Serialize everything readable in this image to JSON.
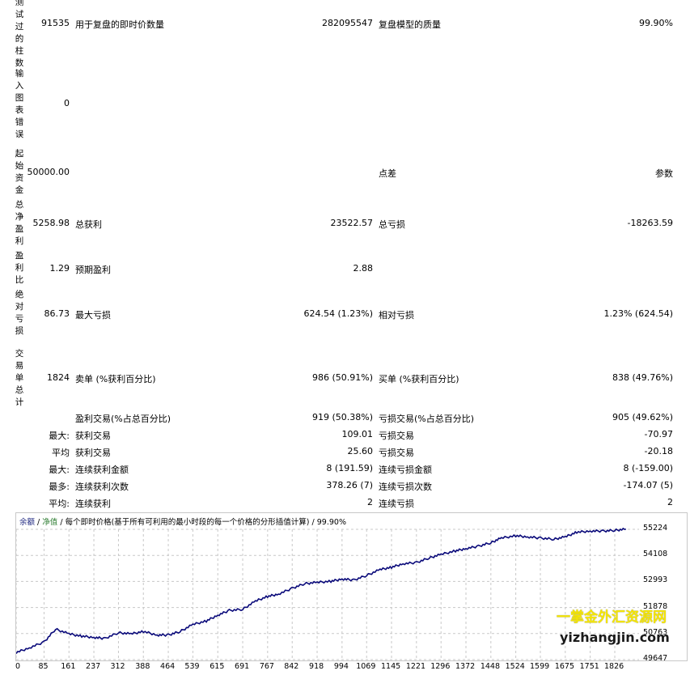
{
  "left_labels": {
    "bars_tested": "测试过的柱数",
    "chart_errors": "输入图表错误",
    "initial_deposit": "起始资金",
    "net_profit": "总净盈利",
    "profit_factor": "盈利比",
    "abs_drawdown": "绝对亏损",
    "total_trades": "交易单总计"
  },
  "rows": {
    "bars": {
      "value": "91535",
      "label2": "用于复盘的即时价数量",
      "value2": "282095547",
      "label3": "复盘模型的质量",
      "value3": "99.90%"
    },
    "errors": {
      "value": "0"
    },
    "deposit": {
      "value": "50000.00",
      "label2": "点差",
      "value3": "参数"
    },
    "net": {
      "value": "5258.98",
      "label2": "总获利",
      "value2": "23522.57",
      "label3": "总亏损",
      "value3": "-18263.59"
    },
    "factor": {
      "value": "1.29",
      "label2": "预期盈利",
      "value2": "2.88"
    },
    "drawdown": {
      "value": "86.73",
      "label2": "最大亏损",
      "value2": "624.54 (1.23%)",
      "label3": "相对亏损",
      "value3": "1.23% (624.54)"
    },
    "trades": {
      "value": "1824",
      "label2": "卖单 (%获利百分比)",
      "value2": "986 (50.91%)",
      "label3": "买单 (%获利百分比)",
      "value3": "838 (49.76%)"
    },
    "profit_trades": {
      "label2": "盈利交易(%占总百分比)",
      "value2": "919 (50.38%)",
      "label3": "亏损交易(%占总百分比)",
      "value3": "905 (49.62%)"
    },
    "largest": {
      "label1": "最大:",
      "label2": "获利交易",
      "value2": "109.01",
      "label3": "亏损交易",
      "value3": "-70.97"
    },
    "average": {
      "label1": "平均",
      "label2": "获利交易",
      "value2": "25.60",
      "label3": "亏损交易",
      "value3": "-20.18"
    },
    "max_consec": {
      "label1": "最大:",
      "label2": "连续获利金额",
      "value2": "8 (191.59)",
      "label3": "连续亏损金额",
      "value3": "8 (-159.00)"
    },
    "maximal": {
      "label1": "最多:",
      "label2": "连续获利次数",
      "value2": "378.26 (7)",
      "label3": "连续亏损次数",
      "value3": "-174.07 (5)"
    },
    "avg_consec": {
      "label1": "平均:",
      "label2": "连续获利",
      "value2": "2",
      "label3": "连续亏损",
      "value3": "2"
    }
  },
  "chart": {
    "legend_balance": "余额",
    "legend_equity": "净值",
    "header_text": "每个即时价格(基于所有可利用的最小时段的每一个价格的分形插值计算)",
    "quality": "99.90%",
    "sep": "/",
    "line_color": "#0a0a7a",
    "grid_color": "#c8c8c8"
  },
  "chart_data": {
    "type": "line",
    "x_ticks": [
      "0",
      "85",
      "161",
      "237",
      "312",
      "388",
      "464",
      "539",
      "615",
      "691",
      "767",
      "842",
      "918",
      "994",
      "1069",
      "1145",
      "1221",
      "1296",
      "1372",
      "1448",
      "1524",
      "1599",
      "1675",
      "1751",
      "1826"
    ],
    "y_ticks": [
      "55224",
      "54108",
      "52993",
      "51878",
      "50763",
      "49647"
    ],
    "ylim": [
      49647,
      55224
    ],
    "xlim": [
      0,
      1900
    ],
    "series": [
      {
        "x": [
          0,
          40,
          85,
          120,
          161,
          200,
          237,
          270,
          312,
          350,
          388,
          430,
          464,
          500,
          539,
          580,
          615,
          650,
          691,
          730,
          767,
          800,
          842,
          880,
          918,
          960,
          994,
          1030,
          1069,
          1110,
          1145,
          1180,
          1221,
          1260,
          1296,
          1340,
          1372,
          1410,
          1448,
          1480,
          1524,
          1560,
          1599,
          1640,
          1675,
          1710,
          1751,
          1790,
          1826,
          1860
        ],
        "y": [
          49950,
          50150,
          50400,
          50950,
          50750,
          50650,
          50600,
          50550,
          50800,
          50750,
          50850,
          50700,
          50700,
          50850,
          51150,
          51300,
          51550,
          51750,
          51800,
          52150,
          52350,
          52450,
          52700,
          52900,
          52950,
          53000,
          53100,
          53050,
          53250,
          53500,
          53600,
          53750,
          53800,
          54000,
          54150,
          54300,
          54400,
          54500,
          54650,
          54850,
          54950,
          54900,
          54850,
          54800,
          54900,
          55100,
          55150,
          55150,
          55180,
          55230
        ]
      }
    ]
  },
  "watermark": {
    "line1": "一掌金外汇资源网",
    "line2": "yizhangjin.com"
  }
}
